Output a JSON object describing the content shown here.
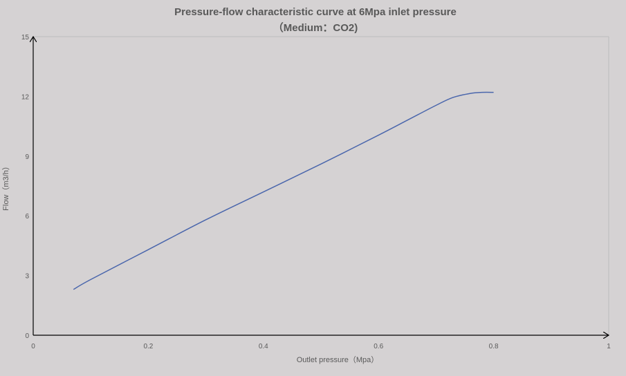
{
  "chart_data": {
    "type": "line",
    "title": "Pressure-flow characteristic curve at 6Mpa inlet pressure",
    "subtitle": "（Medium：CO2)",
    "xlabel": "Outlet pressure（Mpa）",
    "ylabel": "Flow（m3/h）",
    "xlim": [
      0,
      1
    ],
    "ylim": [
      0,
      15
    ],
    "x_ticks": [
      "0",
      "0.2",
      "0.4",
      "0.6",
      "0.8",
      "1"
    ],
    "y_ticks": [
      "0",
      "3",
      "6",
      "9",
      "12",
      "15"
    ],
    "grid": false,
    "legend": "none",
    "series": [
      {
        "color": "#4a66ac",
        "x": [
          0.07,
          0.1,
          0.2,
          0.3,
          0.4,
          0.5,
          0.6,
          0.65,
          0.7,
          0.73,
          0.76,
          0.78,
          0.8
        ],
        "y": [
          2.3,
          2.8,
          4.3,
          5.8,
          7.2,
          8.6,
          10.05,
          10.8,
          11.55,
          11.95,
          12.15,
          12.2,
          12.2
        ]
      }
    ],
    "colors": {
      "background": "#d5d2d3",
      "axis": "#000000",
      "text": "#595959"
    }
  }
}
